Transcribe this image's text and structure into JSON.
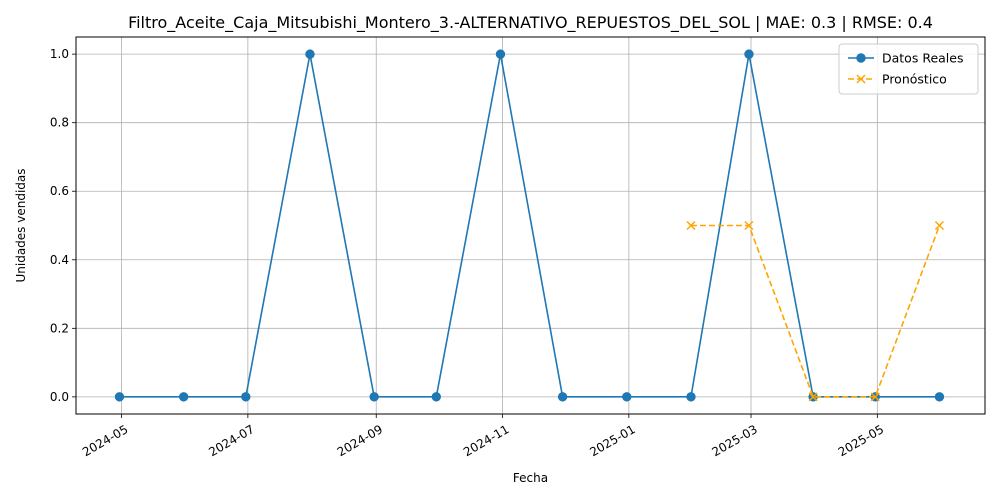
{
  "chart_data": {
    "type": "line",
    "title": "Filtro_Aceite_Caja_Mitsubishi_Montero_3.-ALTERNATIVO_REPUESTOS_DEL_SOL | MAE: 0.3 | RMSE: 0.4",
    "xlabel": "Fecha",
    "ylabel": "Unidades vendidas",
    "x_ticks": [
      "2024-05",
      "2024-07",
      "2024-09",
      "2024-11",
      "2025-01",
      "2025-03",
      "2025-05"
    ],
    "y_ticks": [
      "0.0",
      "0.2",
      "0.4",
      "0.6",
      "0.8",
      "1.0"
    ],
    "ylim": [
      -0.05,
      1.05
    ],
    "xlim": [
      "2024-04-09",
      "2025-06-22"
    ],
    "grid": true,
    "legend_position": "top-right",
    "series": [
      {
        "name": "Datos Reales",
        "color": "#1f77b4",
        "marker": "circle",
        "line_style": "solid",
        "points": [
          {
            "x": "2024-04-30",
            "y": 0
          },
          {
            "x": "2024-05-31",
            "y": 0
          },
          {
            "x": "2024-06-30",
            "y": 0
          },
          {
            "x": "2024-07-31",
            "y": 1
          },
          {
            "x": "2024-08-31",
            "y": 0
          },
          {
            "x": "2024-09-30",
            "y": 0
          },
          {
            "x": "2024-10-31",
            "y": 1
          },
          {
            "x": "2024-11-30",
            "y": 0
          },
          {
            "x": "2024-12-31",
            "y": 0
          },
          {
            "x": "2025-01-31",
            "y": 0
          },
          {
            "x": "2025-02-28",
            "y": 1
          },
          {
            "x": "2025-03-31",
            "y": 0
          },
          {
            "x": "2025-04-30",
            "y": 0
          },
          {
            "x": "2025-05-31",
            "y": 0
          }
        ]
      },
      {
        "name": "Pronóstico",
        "color": "#ffa500",
        "marker": "x",
        "line_style": "dashed",
        "points": [
          {
            "x": "2025-01-31",
            "y": 0.5
          },
          {
            "x": "2025-02-28",
            "y": 0.5
          },
          {
            "x": "2025-03-31",
            "y": 0
          },
          {
            "x": "2025-04-30",
            "y": 0
          },
          {
            "x": "2025-05-31",
            "y": 0.5
          }
        ]
      }
    ]
  }
}
